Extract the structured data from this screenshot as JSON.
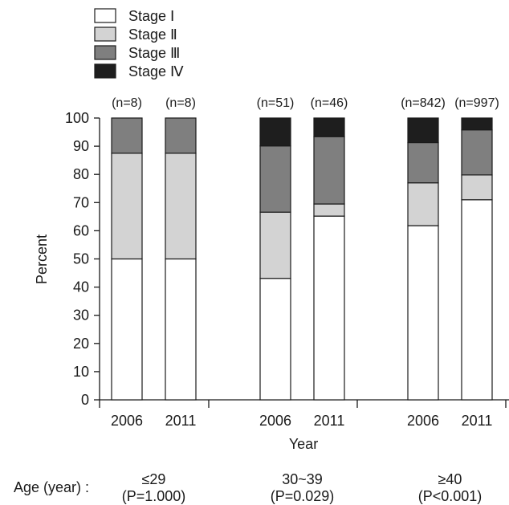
{
  "chart_data": {
    "type": "bar",
    "stacked": true,
    "ylabel": "Percent",
    "xlabel": "Year",
    "ylim": [
      0,
      100
    ],
    "yticks": [
      0,
      10,
      20,
      30,
      40,
      50,
      60,
      70,
      80,
      90,
      100
    ],
    "legend": {
      "placement": "top-left",
      "entries": [
        {
          "label": "Stage Ⅰ",
          "color": "#ffffff"
        },
        {
          "label": "Stage Ⅱ",
          "color": "#d3d3d3"
        },
        {
          "label": "Stage Ⅲ",
          "color": "#7f7f7f"
        },
        {
          "label": "Stage Ⅳ",
          "color": "#1e1e1e"
        }
      ]
    },
    "age_axis_label": "Age (year) :",
    "groups": [
      {
        "age": "≤29",
        "pvalue": "(P=1.000)",
        "bars": [
          {
            "year": "2006",
            "n": "(n=8)",
            "values": [
              50.0,
              37.5,
              12.5,
              0.0
            ]
          },
          {
            "year": "2011",
            "n": "(n=8)",
            "values": [
              50.0,
              37.5,
              12.5,
              0.0
            ]
          }
        ]
      },
      {
        "age": "30~39",
        "pvalue": "(P=0.029)",
        "bars": [
          {
            "year": "2006",
            "n": "(n=51)",
            "values": [
              43.1,
              23.5,
              23.5,
              9.9
            ]
          },
          {
            "year": "2011",
            "n": "(n=46)",
            "values": [
              65.2,
              4.3,
              23.9,
              6.6
            ]
          }
        ]
      },
      {
        "age": "≥40",
        "pvalue": "(P<0.001)",
        "bars": [
          {
            "year": "2006",
            "n": "(n=842)",
            "values": [
              61.8,
              15.2,
              14.3,
              8.7
            ]
          },
          {
            "year": "2011",
            "n": "(n=997)",
            "values": [
              71.0,
              8.8,
              16.0,
              4.2
            ]
          }
        ]
      }
    ]
  }
}
